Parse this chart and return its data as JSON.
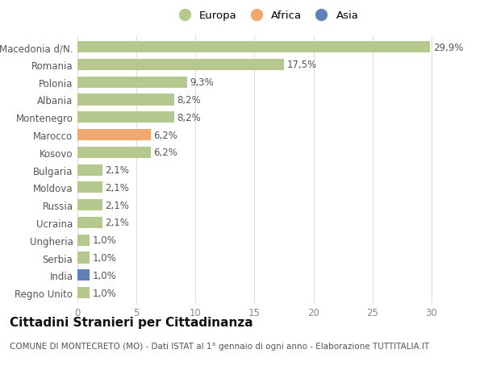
{
  "categories": [
    "Macedonia d/N.",
    "Romania",
    "Polonia",
    "Albania",
    "Montenegro",
    "Marocco",
    "Kosovo",
    "Bulgaria",
    "Moldova",
    "Russia",
    "Ucraina",
    "Ungheria",
    "Serbia",
    "India",
    "Regno Unito"
  ],
  "values": [
    29.9,
    17.5,
    9.3,
    8.2,
    8.2,
    6.2,
    6.2,
    2.1,
    2.1,
    2.1,
    2.1,
    1.0,
    1.0,
    1.0,
    1.0
  ],
  "labels": [
    "29,9%",
    "17,5%",
    "9,3%",
    "8,2%",
    "8,2%",
    "6,2%",
    "6,2%",
    "2,1%",
    "2,1%",
    "2,1%",
    "2,1%",
    "1,0%",
    "1,0%",
    "1,0%",
    "1,0%"
  ],
  "colors": [
    "#b5c98e",
    "#b5c98e",
    "#b5c98e",
    "#b5c98e",
    "#b5c98e",
    "#f0a870",
    "#b5c98e",
    "#b5c98e",
    "#b5c98e",
    "#b5c98e",
    "#b5c98e",
    "#b5c98e",
    "#b5c98e",
    "#6080b8",
    "#b5c98e"
  ],
  "legend_labels": [
    "Europa",
    "Africa",
    "Asia"
  ],
  "legend_colors": [
    "#b5c98e",
    "#f0a870",
    "#6080b8"
  ],
  "title": "Cittadini Stranieri per Cittadinanza",
  "subtitle": "COMUNE DI MONTECRETO (MO) - Dati ISTAT al 1° gennaio di ogni anno - Elaborazione TUTTITALIA.IT",
  "xlim": [
    0,
    32
  ],
  "xticks": [
    0,
    5,
    10,
    15,
    20,
    25,
    30
  ],
  "bg_color": "#ffffff",
  "grid_color": "#dddddd",
  "bar_height": 0.65,
  "label_fontsize": 8.5,
  "tick_fontsize": 8.5,
  "title_fontsize": 11,
  "subtitle_fontsize": 7.5
}
